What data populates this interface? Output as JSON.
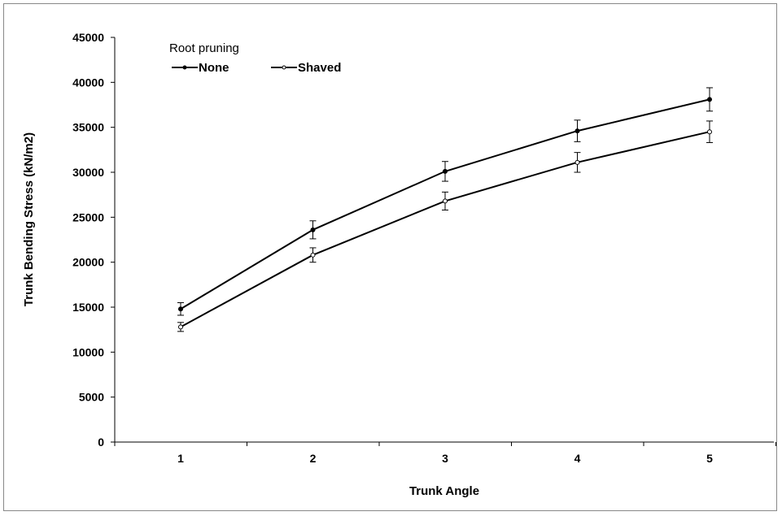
{
  "chart_data": {
    "type": "line",
    "xlabel": "Trunk Angle",
    "ylabel": "Trunk Bending Stress (kN/m2)",
    "categories": [
      "1",
      "2",
      "3",
      "4",
      "5"
    ],
    "ylim": [
      0,
      45000
    ],
    "yticks": [
      0,
      5000,
      10000,
      15000,
      20000,
      25000,
      30000,
      35000,
      40000,
      45000
    ],
    "grid": false,
    "legend": {
      "title": "Root pruning",
      "placement": "top-left"
    },
    "series": [
      {
        "name": "None",
        "marker": "filled",
        "values": [
          14800,
          23600,
          30100,
          34600,
          38100
        ],
        "errors": [
          700,
          1000,
          1100,
          1200,
          1300
        ]
      },
      {
        "name": "Shaved",
        "marker": "open",
        "values": [
          12800,
          20800,
          26800,
          31100,
          34500
        ],
        "errors": [
          500,
          800,
          1000,
          1100,
          1200
        ]
      }
    ],
    "colors": {
      "line": "#000000",
      "axis": "#000000"
    }
  }
}
